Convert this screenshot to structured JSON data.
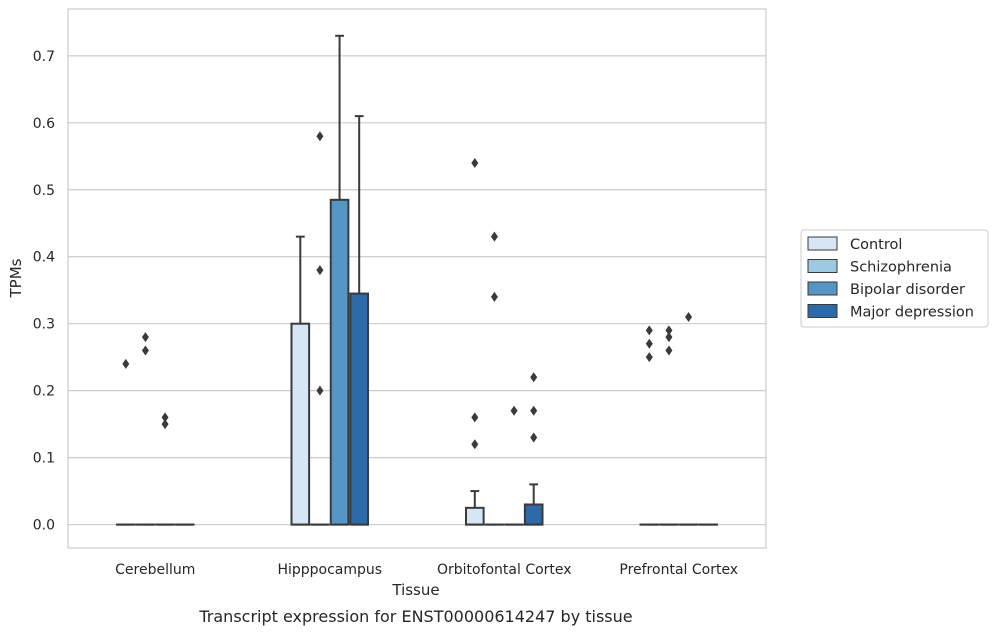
{
  "chart_data": {
    "type": "box",
    "xlabel": "Tissue",
    "ylabel": "TPMs",
    "caption": "Transcript expression for ENST00000614247 by tissue",
    "ylim": [
      -0.035,
      0.77
    ],
    "yticks": [
      0.0,
      0.1,
      0.2,
      0.3,
      0.4,
      0.5,
      0.6,
      0.7
    ],
    "ytick_labels": [
      "0.0",
      "0.1",
      "0.2",
      "0.3",
      "0.4",
      "0.5",
      "0.6",
      "0.7"
    ],
    "grid": true,
    "legend_position": "right",
    "categories": [
      "Cerebellum",
      "Hipppocampus",
      "Orbitofontal Cortex",
      "Prefrontal Cortex"
    ],
    "series": [
      {
        "name": "Control",
        "color": "#d6e6f4",
        "boxes": [
          {
            "q1": 0.0,
            "median": 0.0,
            "q3": 0.0,
            "whisker_low": 0.0,
            "whisker_high": 0.0,
            "outliers": [
              0.24
            ]
          },
          {
            "q1": 0.0,
            "median": 0.0,
            "q3": 0.3,
            "whisker_low": 0.0,
            "whisker_high": 0.43,
            "outliers": []
          },
          {
            "q1": 0.0,
            "median": 0.0,
            "q3": 0.025,
            "whisker_low": 0.0,
            "whisker_high": 0.05,
            "outliers": [
              0.54,
              0.16,
              0.12
            ]
          },
          {
            "q1": 0.0,
            "median": 0.0,
            "q3": 0.0,
            "whisker_low": 0.0,
            "whisker_high": 0.0,
            "outliers": [
              0.29,
              0.27,
              0.25
            ]
          }
        ]
      },
      {
        "name": "Schizophrenia",
        "color": "#9dc9e1",
        "boxes": [
          {
            "q1": 0.0,
            "median": 0.0,
            "q3": 0.0,
            "whisker_low": 0.0,
            "whisker_high": 0.0,
            "outliers": [
              0.28,
              0.26
            ]
          },
          {
            "q1": 0.0,
            "median": 0.0,
            "q3": 0.0,
            "whisker_low": 0.0,
            "whisker_high": 0.0,
            "outliers": [
              0.58,
              0.38,
              0.2
            ]
          },
          {
            "q1": 0.0,
            "median": 0.0,
            "q3": 0.0,
            "whisker_low": 0.0,
            "whisker_high": 0.0,
            "outliers": [
              0.43,
              0.34
            ]
          },
          {
            "q1": 0.0,
            "median": 0.0,
            "q3": 0.0,
            "whisker_low": 0.0,
            "whisker_high": 0.0,
            "outliers": [
              0.29,
              0.28,
              0.26
            ]
          }
        ]
      },
      {
        "name": "Bipolar disorder",
        "color": "#5596c4",
        "boxes": [
          {
            "q1": 0.0,
            "median": 0.0,
            "q3": 0.0,
            "whisker_low": 0.0,
            "whisker_high": 0.0,
            "outliers": [
              0.16,
              0.15
            ]
          },
          {
            "q1": 0.0,
            "median": 0.0,
            "q3": 0.485,
            "whisker_low": 0.0,
            "whisker_high": 0.73,
            "outliers": []
          },
          {
            "q1": 0.0,
            "median": 0.0,
            "q3": 0.0,
            "whisker_low": 0.0,
            "whisker_high": 0.0,
            "outliers": [
              0.17
            ]
          },
          {
            "q1": 0.0,
            "median": 0.0,
            "q3": 0.0,
            "whisker_low": 0.0,
            "whisker_high": 0.0,
            "outliers": [
              0.31
            ]
          }
        ]
      },
      {
        "name": "Major depression",
        "color": "#2c6aa9",
        "boxes": [
          {
            "q1": 0.0,
            "median": 0.0,
            "q3": 0.0,
            "whisker_low": 0.0,
            "whisker_high": 0.0,
            "outliers": []
          },
          {
            "q1": 0.0,
            "median": 0.0,
            "q3": 0.345,
            "whisker_low": 0.0,
            "whisker_high": 0.61,
            "outliers": []
          },
          {
            "q1": 0.0,
            "median": 0.0,
            "q3": 0.03,
            "whisker_low": 0.0,
            "whisker_high": 0.06,
            "outliers": [
              0.22,
              0.17,
              0.13
            ]
          },
          {
            "q1": 0.0,
            "median": 0.0,
            "q3": 0.0,
            "whisker_low": 0.0,
            "whisker_high": 0.0,
            "outliers": []
          }
        ]
      }
    ]
  }
}
